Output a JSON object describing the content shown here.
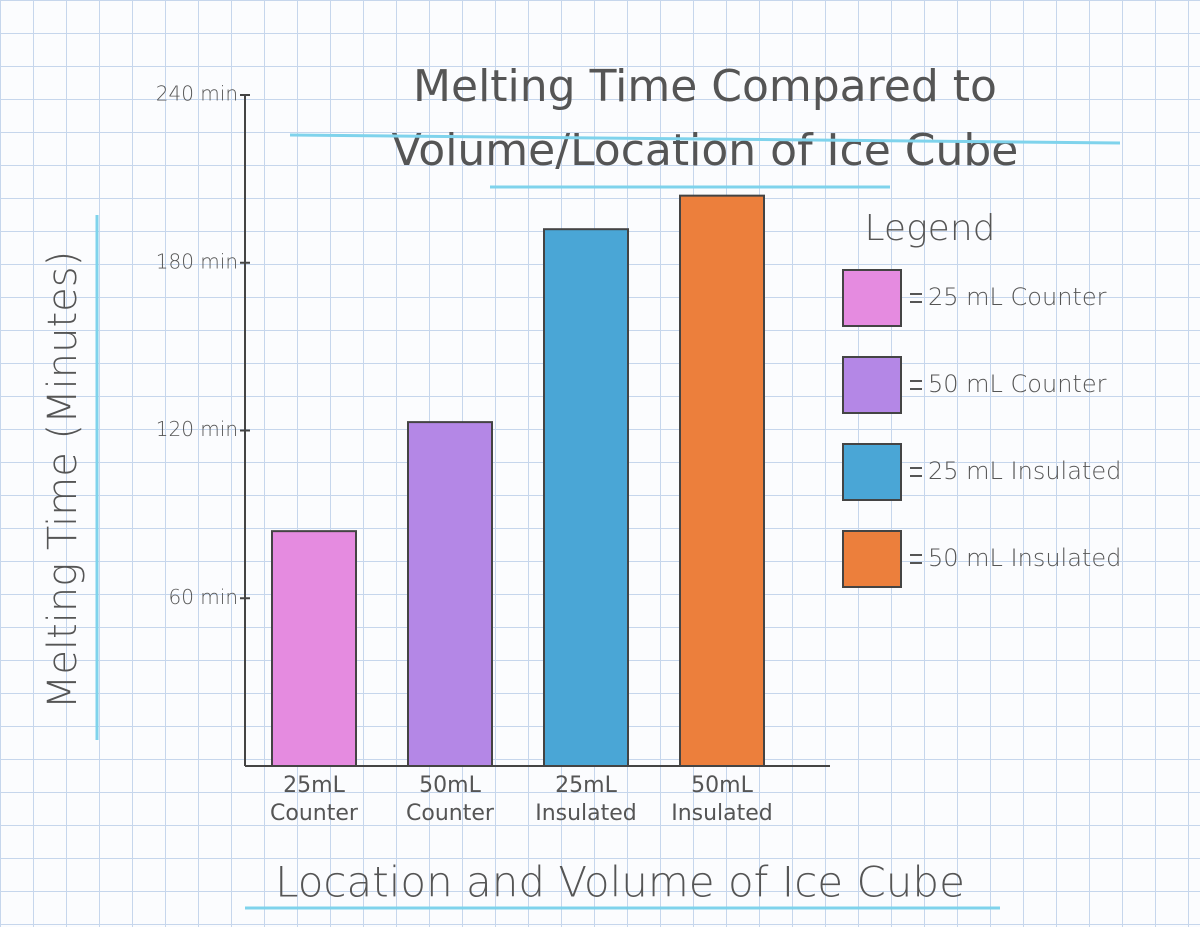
{
  "chart_data": {
    "type": "bar",
    "title": "Melting Time Compared to Volume/Location of Ice Cube",
    "x_label": "Location and Volume of Ice Cube",
    "y_label": "Melting Time (Minutes)",
    "categories": [
      "25mL Counter",
      "50mL Counter",
      "25mL Insulated",
      "50mL Insulated"
    ],
    "values": [
      84,
      123,
      192,
      204
    ],
    "colors": [
      "#e58be0",
      "#b487e6",
      "#4aa6d6",
      "#ec7f3c"
    ],
    "legend_title": "Legend",
    "legend": [
      "25 mL Counter",
      "50 mL Counter",
      "25 mL Insulated",
      "50 mL Insulated"
    ],
    "ylim": [
      0,
      240
    ],
    "yticks": [
      {
        "value": 60,
        "label": "60 min"
      },
      {
        "value": 120,
        "label": "120 min"
      },
      {
        "value": 180,
        "label": "180 min"
      },
      {
        "value": 240,
        "label": "240 min"
      }
    ]
  }
}
